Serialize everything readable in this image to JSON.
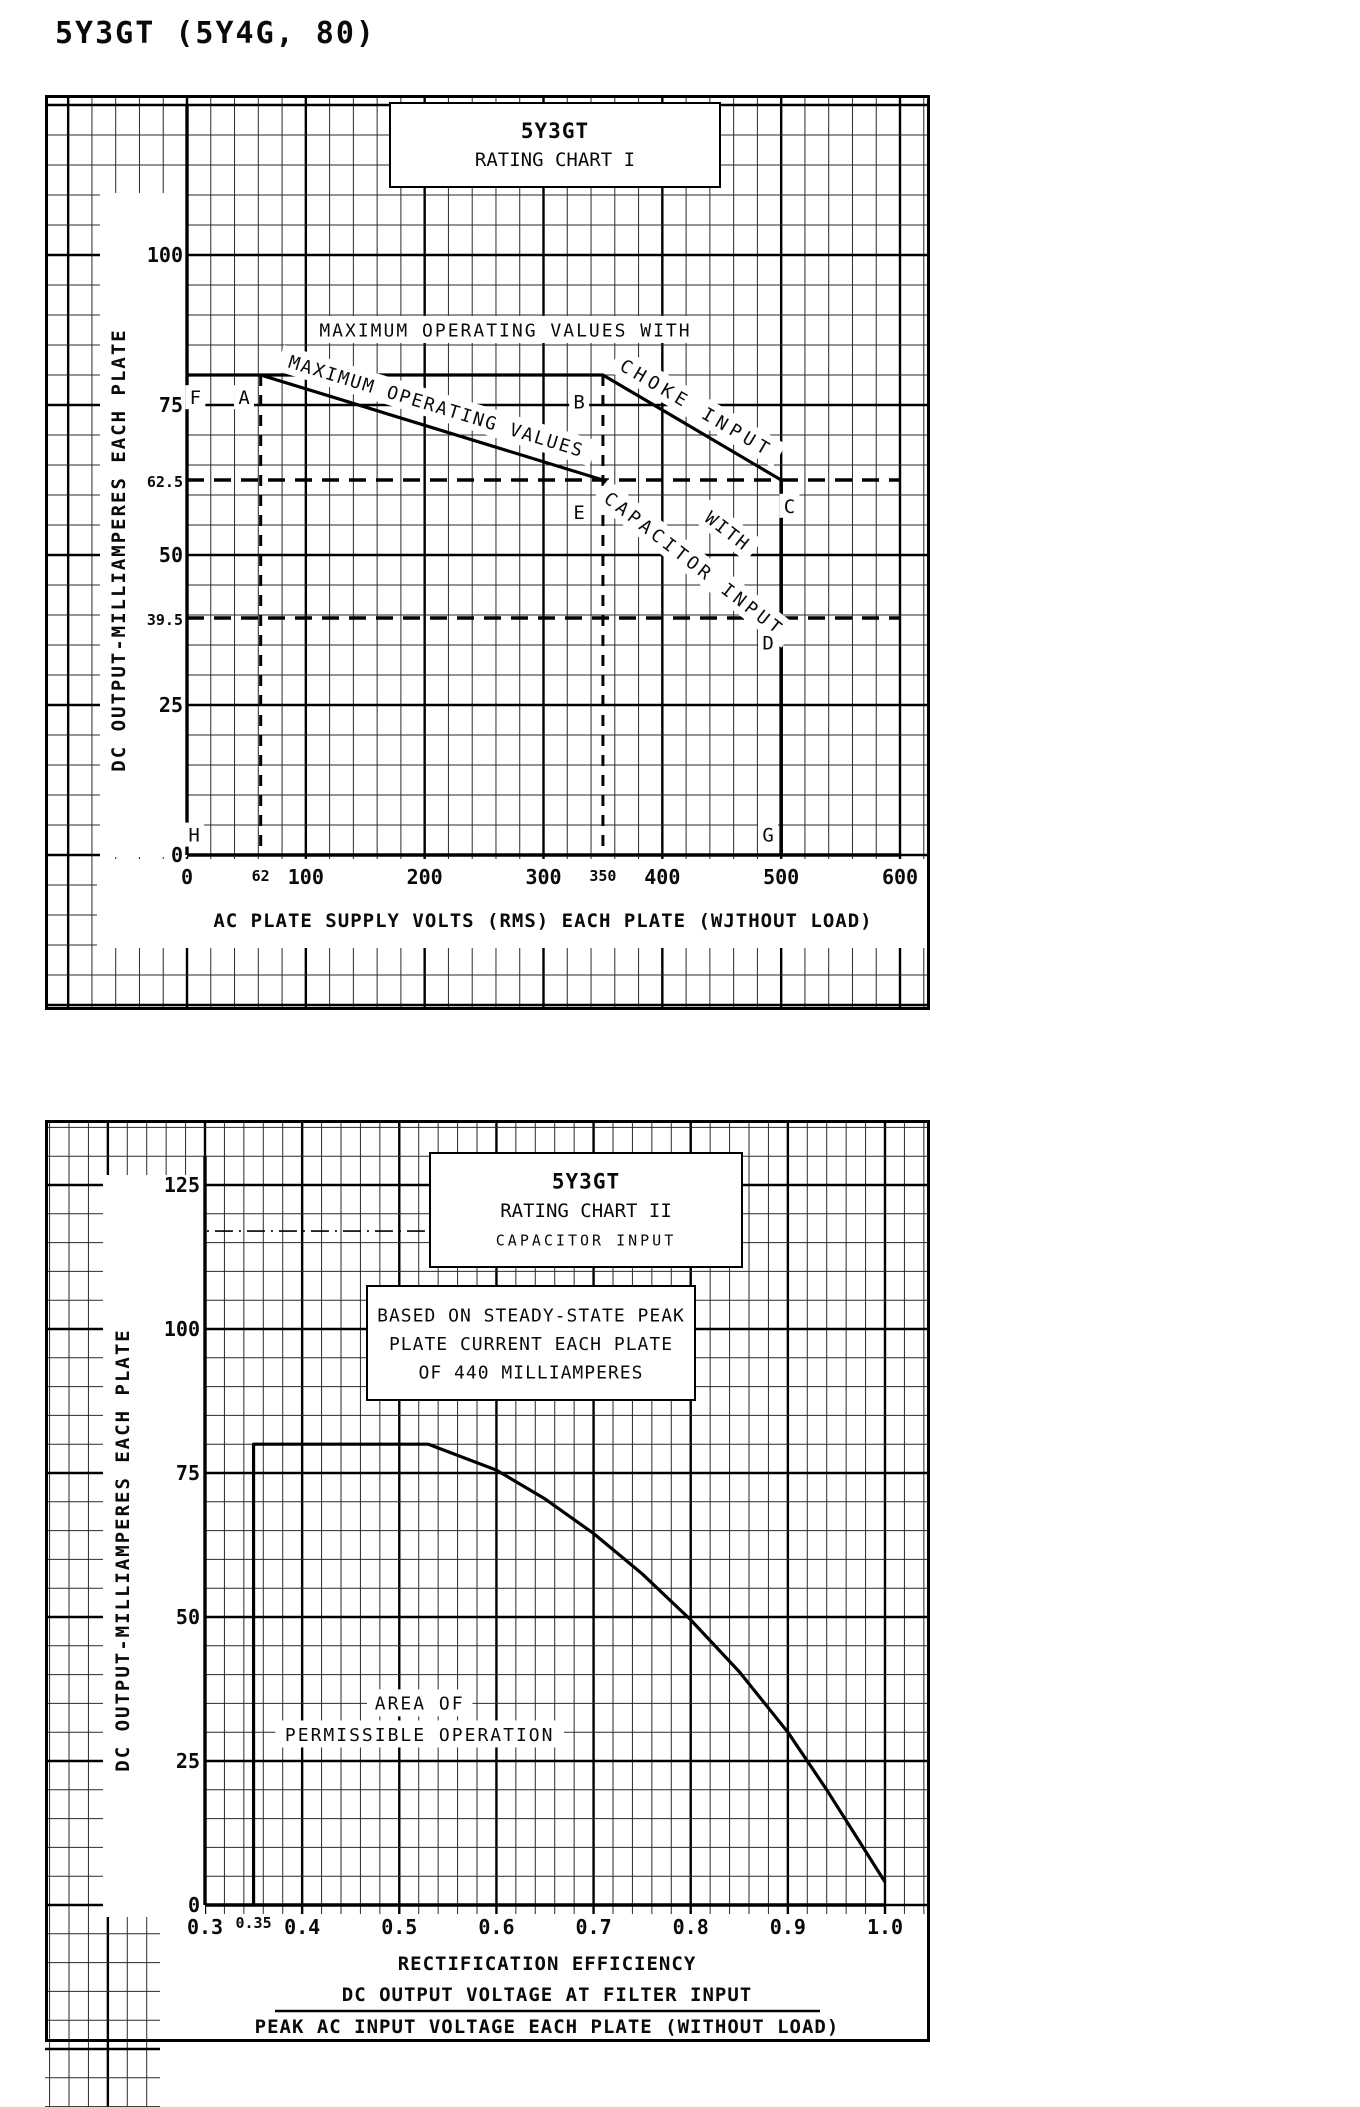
{
  "page": {
    "title": "5Y3GT (5Y4G, 80)"
  },
  "colors": {
    "ink": "#0a0a0a",
    "paper": "#ffffff"
  },
  "chart_data": [
    {
      "id": "rating-chart-1",
      "type": "line",
      "title_lines": [
        "5Y3GT",
        "RATING CHART I"
      ],
      "xlabel": "AC PLATE SUPPLY VOLTS (RMS) EACH PLATE (WJTHOUT LOAD)",
      "ylabel": "DC OUTPUT-MILLIAMPERES EACH PLATE",
      "xlim": [
        0,
        600
      ],
      "ylim": [
        0,
        100
      ],
      "x_minor": 20,
      "x_major": 100,
      "y_minor": 5,
      "y_major": 25,
      "grid": "on",
      "legend": "none",
      "x_ticks": [
        {
          "v": 0,
          "label": "0"
        },
        {
          "v": 62,
          "label": "62",
          "small": true
        },
        {
          "v": 100,
          "label": "100"
        },
        {
          "v": 200,
          "label": "200"
        },
        {
          "v": 300,
          "label": "300"
        },
        {
          "v": 350,
          "label": "350",
          "small": true
        },
        {
          "v": 400,
          "label": "400"
        },
        {
          "v": 500,
          "label": "500"
        },
        {
          "v": 600,
          "label": "600"
        }
      ],
      "y_ticks": [
        {
          "v": 100,
          "label": "100"
        },
        {
          "v": 75,
          "label": "75"
        },
        {
          "v": 62.5,
          "label": "62.5",
          "small": true
        },
        {
          "v": 50,
          "label": "50"
        },
        {
          "v": 39.5,
          "label": "39.5",
          "small": true
        },
        {
          "v": 25,
          "label": "25"
        },
        {
          "v": 0,
          "label": "0"
        }
      ],
      "series": [
        {
          "name": "choke-input-limit",
          "points": [
            [
              0,
              80
            ],
            [
              350,
              80
            ],
            [
              500,
              62.5
            ]
          ],
          "width": 3.2
        },
        {
          "name": "capacitor-input-limit",
          "points": [
            [
              62,
              80
            ],
            [
              350,
              62.5
            ],
            [
              500,
              39.5
            ]
          ],
          "width": 3.2
        },
        {
          "name": "supply-limit-500v",
          "points": [
            [
              500,
              62.5
            ],
            [
              500,
              0
            ]
          ],
          "width": 3.6
        },
        {
          "name": "guide-62-5-ma",
          "points": [
            [
              0,
              62.5
            ],
            [
              600,
              62.5
            ]
          ],
          "width": 3.6,
          "dash": "17,10"
        },
        {
          "name": "guide-39-5-ma",
          "points": [
            [
              0,
              39.5
            ],
            [
              600,
              39.5
            ]
          ],
          "width": 3.6,
          "dash": "17,10"
        },
        {
          "name": "guide-62v",
          "points": [
            [
              62,
              80
            ],
            [
              62,
              0
            ]
          ],
          "width": 3,
          "dash": "11,9"
        },
        {
          "name": "guide-350v",
          "points": [
            [
              350,
              80
            ],
            [
              350,
              0
            ]
          ],
          "width": 3,
          "dash": "11,9"
        }
      ],
      "point_labels": [
        {
          "text": "F",
          "x": 7,
          "y": 76.3
        },
        {
          "text": "A",
          "x": 48,
          "y": 76.3
        },
        {
          "text": "B",
          "x": 330,
          "y": 75.6
        },
        {
          "text": "E",
          "x": 330,
          "y": 57.2
        },
        {
          "text": "C",
          "x": 507,
          "y": 58.2
        },
        {
          "text": "D",
          "x": 489,
          "y": 35.4
        },
        {
          "text": "G",
          "x": 489,
          "y": 3.4
        },
        {
          "text": "H",
          "x": 6,
          "y": 3.4
        }
      ],
      "annotations": [
        {
          "text": "MAXIMUM OPERATING VALUES WITH",
          "x": 268,
          "y": 87.5,
          "rot": 0,
          "size": 18,
          "ls": 2
        },
        {
          "text": "CHOKE INPUT",
          "x": 429,
          "y": 74.5,
          "rot": 30.5,
          "size": 18,
          "ls": 5
        },
        {
          "text": "MAXIMUM OPERATING VALUES",
          "x": 210,
          "y": 74.8,
          "rot": 17,
          "size": 18,
          "ls": 2
        },
        {
          "text": "CAPACITOR INPUT",
          "x": 427,
          "y": 48.5,
          "rot": 37.8,
          "size": 18,
          "ls": 4
        },
        {
          "text": "WITH",
          "x": 455,
          "y": 54,
          "rot": 37.8,
          "size": 18,
          "ls": 2
        }
      ]
    },
    {
      "id": "rating-chart-2",
      "type": "line",
      "title_lines": [
        "5Y3GT",
        "RATING CHART II",
        "CAPACITOR INPUT"
      ],
      "note_lines": [
        "BASED ON STEADY-STATE PEAK",
        "PLATE CURRENT EACH PLATE",
        "OF 440 MILLIAMPERES"
      ],
      "xlabel_lines": [
        "RECTIFICATION EFFICIENCY",
        "DC OUTPUT VOLTAGE AT FILTER INPUT",
        "PEAK AC INPUT VOLTAGE EACH PLATE (WITHOUT LOAD)"
      ],
      "xlabel_fraction": true,
      "ylabel": "DC OUTPUT-MILLIAMPERES EACH PLATE",
      "xlim": [
        0.3,
        1.0
      ],
      "ylim": [
        0,
        125
      ],
      "x_minor": 0.02,
      "x_major": 0.1,
      "y_minor": 5,
      "y_major": 25,
      "grid": "on",
      "legend": "none",
      "x_ticks": [
        {
          "v": 0.3,
          "label": "0.3"
        },
        {
          "v": 0.35,
          "label": "0.35",
          "small": true
        },
        {
          "v": 0.4,
          "label": "0.4"
        },
        {
          "v": 0.5,
          "label": "0.5"
        },
        {
          "v": 0.6,
          "label": "0.6"
        },
        {
          "v": 0.7,
          "label": "0.7"
        },
        {
          "v": 0.8,
          "label": "0.8"
        },
        {
          "v": 0.9,
          "label": "0.9"
        },
        {
          "v": 1.0,
          "label": "1.0"
        }
      ],
      "y_ticks": [
        {
          "v": 125,
          "label": "125"
        },
        {
          "v": 100,
          "label": "100"
        },
        {
          "v": 75,
          "label": "75"
        },
        {
          "v": 50,
          "label": "50"
        },
        {
          "v": 25,
          "label": "25"
        },
        {
          "v": 0,
          "label": "0"
        }
      ],
      "series": [
        {
          "name": "permissible-area-boundary",
          "width": 3.2,
          "points": [
            [
              0.35,
              0
            ],
            [
              0.35,
              80
            ],
            [
              0.53,
              80
            ],
            [
              0.6,
              75.5
            ],
            [
              0.65,
              70.5
            ],
            [
              0.7,
              64.5
            ],
            [
              0.75,
              57.5
            ],
            [
              0.8,
              49.5
            ],
            [
              0.85,
              40.5
            ],
            [
              0.9,
              30
            ],
            [
              0.94,
              20
            ],
            [
              0.97,
              12
            ],
            [
              1.0,
              4
            ]
          ]
        },
        {
          "name": "fold-artifact-line",
          "points": [
            [
              0.302,
              117
            ],
            [
              0.66,
              117
            ]
          ],
          "width": 1.6,
          "dash": "2,6,18,6"
        }
      ],
      "point_labels": [],
      "annotations": [
        {
          "text": "AREA OF",
          "x": 0.521,
          "y": 35,
          "rot": 0,
          "size": 18,
          "ls": 2
        },
        {
          "text": "PERMISSIBLE OPERATION",
          "x": 0.521,
          "y": 29.6,
          "rot": 0,
          "size": 18,
          "ls": 2
        }
      ]
    }
  ]
}
